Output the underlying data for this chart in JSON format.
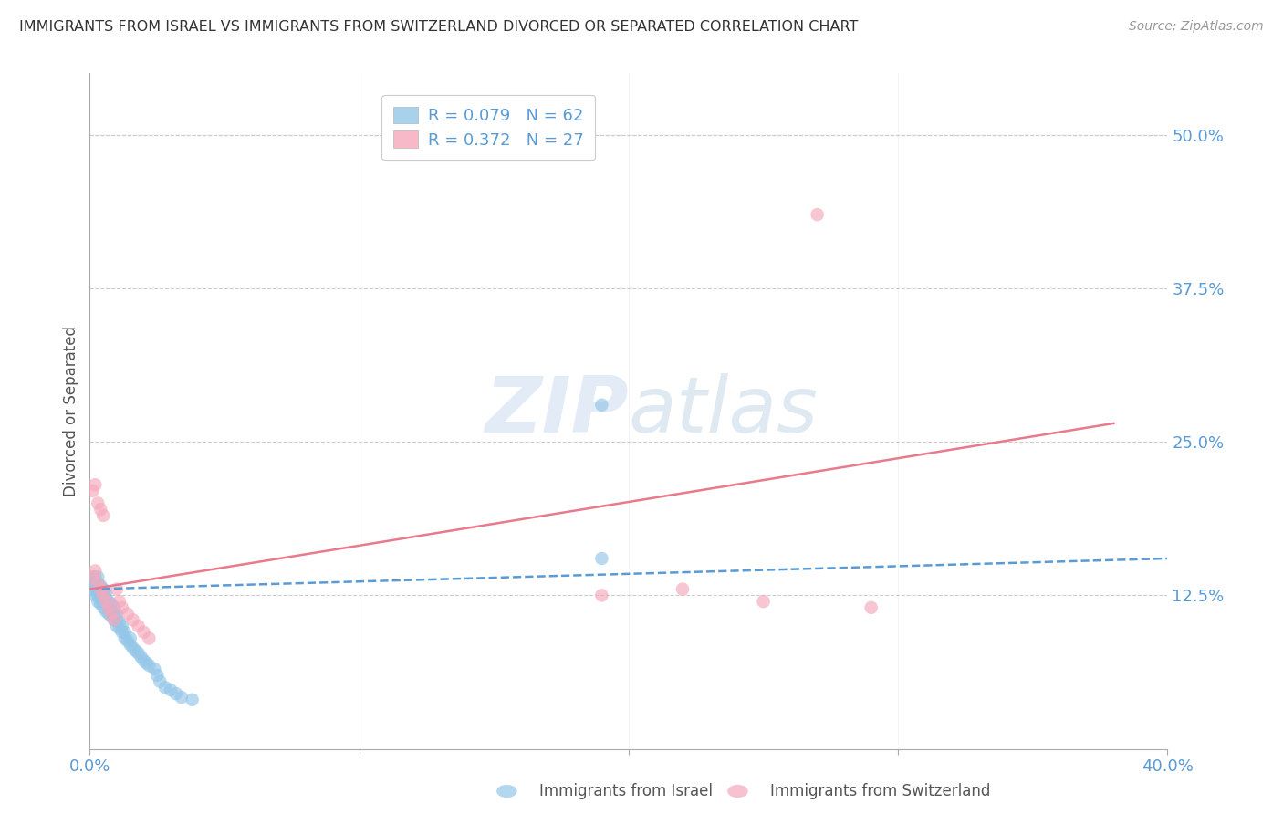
{
  "title": "IMMIGRANTS FROM ISRAEL VS IMMIGRANTS FROM SWITZERLAND DIVORCED OR SEPARATED CORRELATION CHART",
  "source": "Source: ZipAtlas.com",
  "ylabel": "Divorced or Separated",
  "ytick_labels": [
    "50.0%",
    "37.5%",
    "25.0%",
    "12.5%"
  ],
  "ytick_values": [
    0.5,
    0.375,
    0.25,
    0.125
  ],
  "xlim": [
    0.0,
    0.4
  ],
  "ylim": [
    0.0,
    0.55
  ],
  "israel_scatter_x": [
    0.001,
    0.001,
    0.001,
    0.002,
    0.002,
    0.002,
    0.002,
    0.003,
    0.003,
    0.003,
    0.003,
    0.003,
    0.004,
    0.004,
    0.004,
    0.004,
    0.005,
    0.005,
    0.005,
    0.005,
    0.006,
    0.006,
    0.006,
    0.006,
    0.007,
    0.007,
    0.007,
    0.008,
    0.008,
    0.008,
    0.009,
    0.009,
    0.009,
    0.01,
    0.01,
    0.01,
    0.011,
    0.011,
    0.012,
    0.012,
    0.013,
    0.013,
    0.014,
    0.015,
    0.015,
    0.016,
    0.017,
    0.018,
    0.019,
    0.02,
    0.021,
    0.022,
    0.024,
    0.025,
    0.026,
    0.028,
    0.03,
    0.032,
    0.034,
    0.038,
    0.19,
    0.19
  ],
  "israel_scatter_y": [
    0.13,
    0.135,
    0.14,
    0.125,
    0.13,
    0.135,
    0.14,
    0.12,
    0.125,
    0.13,
    0.135,
    0.14,
    0.118,
    0.122,
    0.128,
    0.133,
    0.115,
    0.12,
    0.125,
    0.13,
    0.112,
    0.118,
    0.123,
    0.128,
    0.11,
    0.115,
    0.12,
    0.108,
    0.112,
    0.118,
    0.105,
    0.11,
    0.115,
    0.1,
    0.105,
    0.11,
    0.098,
    0.103,
    0.095,
    0.1,
    0.09,
    0.095,
    0.088,
    0.085,
    0.09,
    0.082,
    0.08,
    0.078,
    0.075,
    0.072,
    0.07,
    0.068,
    0.065,
    0.06,
    0.055,
    0.05,
    0.048,
    0.045,
    0.042,
    0.04,
    0.155,
    0.28
  ],
  "switzerland_scatter_x": [
    0.001,
    0.001,
    0.002,
    0.002,
    0.003,
    0.003,
    0.004,
    0.004,
    0.005,
    0.005,
    0.006,
    0.007,
    0.008,
    0.009,
    0.01,
    0.011,
    0.012,
    0.014,
    0.016,
    0.018,
    0.02,
    0.022,
    0.19,
    0.22,
    0.25,
    0.27,
    0.29
  ],
  "switzerland_scatter_y": [
    0.14,
    0.21,
    0.145,
    0.215,
    0.135,
    0.2,
    0.13,
    0.195,
    0.125,
    0.19,
    0.12,
    0.115,
    0.11,
    0.105,
    0.13,
    0.12,
    0.115,
    0.11,
    0.105,
    0.1,
    0.095,
    0.09,
    0.125,
    0.13,
    0.12,
    0.435,
    0.115
  ],
  "israel_line_x": [
    0.0,
    0.4
  ],
  "israel_line_y": [
    0.13,
    0.155
  ],
  "switzerland_line_x": [
    0.0,
    0.38
  ],
  "switzerland_line_y": [
    0.13,
    0.265
  ],
  "israel_color": "#93c6e8",
  "switzerland_color": "#f5a8bb",
  "israel_line_color": "#5b9bd5",
  "switzerland_line_color": "#e87a8c",
  "background_color": "#ffffff",
  "grid_color": "#cccccc",
  "title_fontsize": 11.5,
  "axis_label_color": "#5b9bd5",
  "watermark_zip": "ZIP",
  "watermark_atlas": "atlas",
  "watermark_color_zip": "#c8d8ee",
  "watermark_color_atlas": "#b0c8e0"
}
